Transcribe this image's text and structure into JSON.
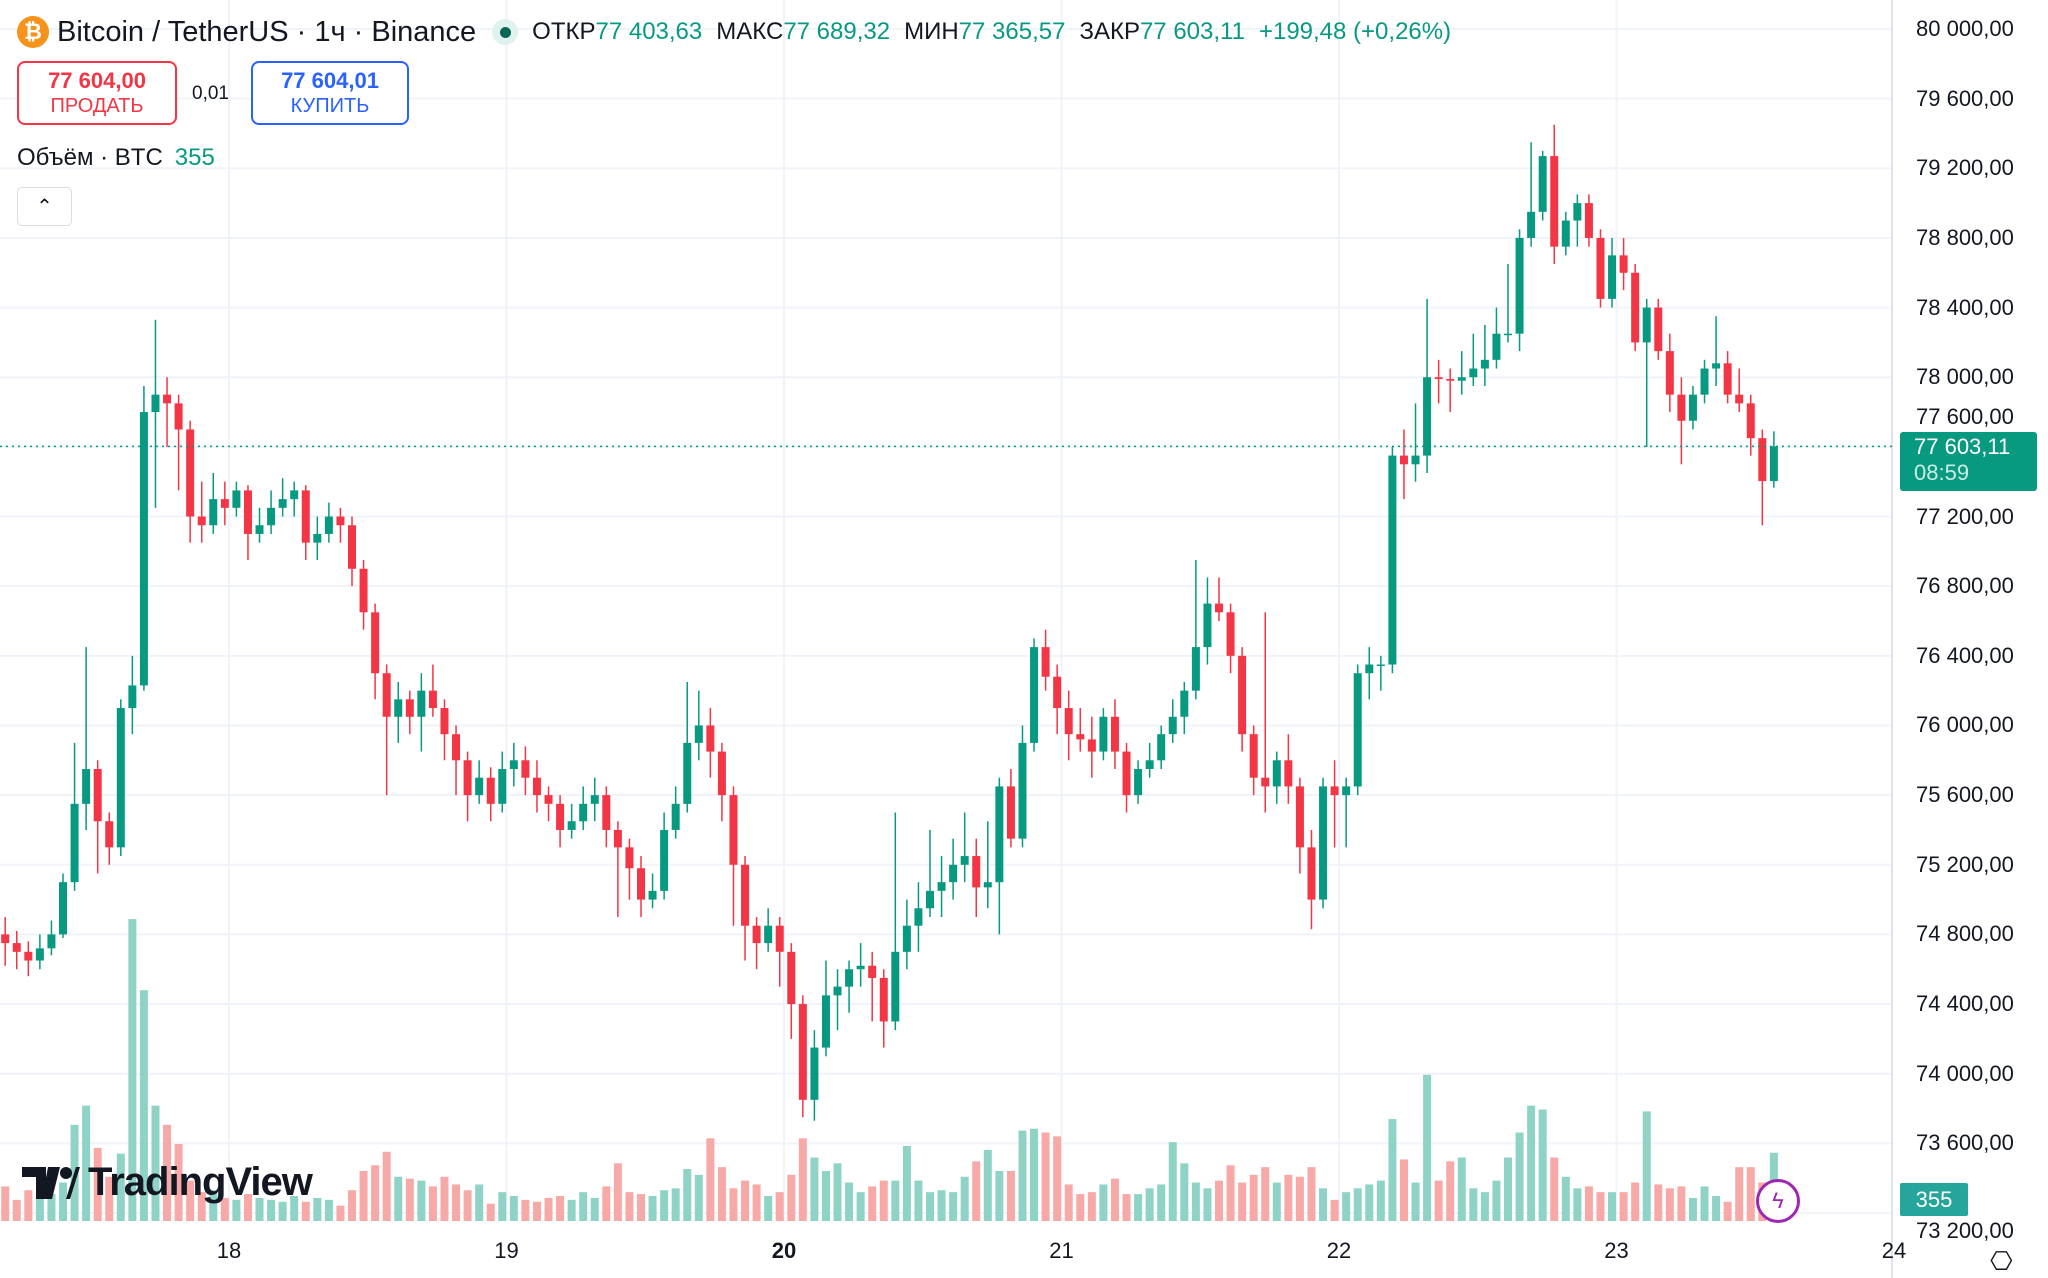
{
  "header": {
    "coin_icon": "bitcoin-icon",
    "title": "Bitcoin / TetherUS · 1ч · Binance",
    "ohlc": [
      {
        "label": "ОТКР",
        "value": "77 403,63"
      },
      {
        "label": "МАКС",
        "value": "77 689,32"
      },
      {
        "label": "МИН",
        "value": "77 365,57"
      },
      {
        "label": "ЗАКР",
        "value": "77 603,11"
      }
    ],
    "change": "+199,48 (+0,26%)"
  },
  "trade": {
    "sell_price": "77 604,00",
    "sell_label": "ПРОДАТЬ",
    "spread": "0,01",
    "buy_price": "77 604,01",
    "buy_label": "КУПИТЬ"
  },
  "volume_legend": {
    "label": "Объём · BTC",
    "value": "355"
  },
  "price_axis": [
    "80 000,00",
    "79 600,00",
    "79 200,00",
    "78 800,00",
    "78 400,00",
    "78 000,00",
    "77 600,00",
    "77 200,00",
    "76 800,00",
    "76 400,00",
    "76 000,00",
    "75 600,00",
    "75 200,00",
    "74 800,00",
    "74 400,00",
    "74 000,00",
    "73 600,00",
    "73 200,00"
  ],
  "last_price": {
    "value": "77 603,11",
    "countdown": "08:59"
  },
  "last_volume": "355",
  "brand": "TradingView",
  "colors": {
    "up": "#089981",
    "down": "#f23645",
    "vol_up": "#8fd3c7",
    "vol_down": "#f7a9a7"
  },
  "chart_data": {
    "type": "candlestick",
    "interval": "1h",
    "x_tick_labels": [
      "18",
      "19",
      "20",
      "21",
      "22",
      "23",
      "24"
    ],
    "ylim": [
      73200,
      80000
    ],
    "grid": true,
    "candles_ohlcv": [
      [
        74800,
        74900,
        74620,
        74750,
        180
      ],
      [
        74750,
        74820,
        74600,
        74700,
        110
      ],
      [
        74700,
        74760,
        74560,
        74650,
        160
      ],
      [
        74650,
        74800,
        74600,
        74720,
        120
      ],
      [
        74720,
        74880,
        74680,
        74800,
        140
      ],
      [
        74800,
        75150,
        74780,
        75100,
        200
      ],
      [
        75100,
        75900,
        75050,
        75550,
        500
      ],
      [
        75550,
        76450,
        75400,
        75750,
        600
      ],
      [
        75750,
        75800,
        75150,
        75450,
        380
      ],
      [
        75450,
        75500,
        75200,
        75300,
        230
      ],
      [
        75300,
        76150,
        75250,
        76100,
        350
      ],
      [
        76100,
        76400,
        75950,
        76230,
        1570
      ],
      [
        76230,
        77950,
        76200,
        77800,
        1200
      ],
      [
        77800,
        78330,
        77250,
        77900,
        600
      ],
      [
        77900,
        78000,
        77600,
        77850,
        500
      ],
      [
        77850,
        77900,
        77350,
        77700,
        400
      ],
      [
        77700,
        77750,
        77050,
        77200,
        210
      ],
      [
        77200,
        77400,
        77050,
        77150,
        150
      ],
      [
        77150,
        77450,
        77100,
        77300,
        160
      ],
      [
        77300,
        77400,
        77150,
        77250,
        120
      ],
      [
        77250,
        77400,
        77200,
        77350,
        110
      ],
      [
        77350,
        77380,
        76950,
        77100,
        140
      ],
      [
        77100,
        77250,
        77050,
        77150,
        120
      ],
      [
        77150,
        77350,
        77100,
        77250,
        110
      ],
      [
        77250,
        77420,
        77200,
        77300,
        100
      ],
      [
        77300,
        77400,
        77200,
        77350,
        130
      ],
      [
        77350,
        77380,
        76950,
        77050,
        100
      ],
      [
        77050,
        77200,
        76950,
        77100,
        120
      ],
      [
        77100,
        77280,
        77050,
        77200,
        110
      ],
      [
        77200,
        77250,
        77050,
        77150,
        80
      ],
      [
        77150,
        77200,
        76800,
        76900,
        160
      ],
      [
        76900,
        76950,
        76550,
        76650,
        260
      ],
      [
        76650,
        76700,
        76150,
        76300,
        290
      ],
      [
        76300,
        76350,
        75600,
        76050,
        360
      ],
      [
        76050,
        76250,
        75900,
        76150,
        230
      ],
      [
        76150,
        76200,
        75950,
        76050,
        220
      ],
      [
        76050,
        76300,
        75850,
        76200,
        210
      ],
      [
        76200,
        76350,
        76050,
        76100,
        180
      ],
      [
        76100,
        76150,
        75800,
        75950,
        230
      ],
      [
        75950,
        76000,
        75600,
        75800,
        190
      ],
      [
        75800,
        75850,
        75450,
        75600,
        160
      ],
      [
        75600,
        75800,
        75550,
        75700,
        190
      ],
      [
        75700,
        75760,
        75450,
        75550,
        90
      ],
      [
        75550,
        75850,
        75500,
        75750,
        150
      ],
      [
        75750,
        75900,
        75650,
        75800,
        130
      ],
      [
        75800,
        75880,
        75600,
        75700,
        110
      ],
      [
        75700,
        75800,
        75500,
        75600,
        100
      ],
      [
        75600,
        75650,
        75450,
        75550,
        120
      ],
      [
        75550,
        75600,
        75300,
        75400,
        130
      ],
      [
        75400,
        75550,
        75350,
        75450,
        110
      ],
      [
        75450,
        75650,
        75400,
        75550,
        150
      ],
      [
        75550,
        75700,
        75450,
        75600,
        120
      ],
      [
        75600,
        75650,
        75300,
        75400,
        180
      ],
      [
        75400,
        75450,
        74900,
        75300,
        300
      ],
      [
        75300,
        75350,
        75000,
        75180,
        150
      ],
      [
        75180,
        75250,
        74900,
        75000,
        140
      ],
      [
        75000,
        75150,
        74950,
        75050,
        130
      ],
      [
        75050,
        75500,
        75000,
        75400,
        160
      ],
      [
        75400,
        75650,
        75350,
        75550,
        170
      ],
      [
        75550,
        76250,
        75500,
        75900,
        270
      ],
      [
        75900,
        76200,
        75800,
        76000,
        240
      ],
      [
        76000,
        76100,
        75700,
        75850,
        430
      ],
      [
        75850,
        75900,
        75450,
        75600,
        280
      ],
      [
        75600,
        75650,
        74850,
        75200,
        170
      ],
      [
        75200,
        75250,
        74650,
        74850,
        210
      ],
      [
        74850,
        74900,
        74600,
        74750,
        190
      ],
      [
        74750,
        74950,
        74700,
        74850,
        130
      ],
      [
        74850,
        74900,
        74500,
        74700,
        150
      ],
      [
        74700,
        74750,
        74200,
        74400,
        240
      ],
      [
        74400,
        74450,
        73750,
        73850,
        430
      ],
      [
        73850,
        74250,
        73730,
        74150,
        330
      ],
      [
        74150,
        74650,
        74100,
        74450,
        260
      ],
      [
        74450,
        74600,
        74250,
        74500,
        300
      ],
      [
        74500,
        74650,
        74350,
        74600,
        200
      ],
      [
        74600,
        74750,
        74500,
        74620,
        150
      ],
      [
        74620,
        74700,
        74300,
        74550,
        180
      ],
      [
        74550,
        74600,
        74150,
        74300,
        210
      ],
      [
        74300,
        75500,
        74250,
        74700,
        210
      ],
      [
        74700,
        75000,
        74600,
        74850,
        390
      ],
      [
        74850,
        75100,
        74700,
        74950,
        210
      ],
      [
        74950,
        75400,
        74900,
        75050,
        150
      ],
      [
        75050,
        75250,
        74900,
        75100,
        160
      ],
      [
        75100,
        75350,
        75000,
        75200,
        150
      ],
      [
        75200,
        75500,
        75100,
        75250,
        230
      ],
      [
        75250,
        75350,
        74900,
        75070,
        310
      ],
      [
        75070,
        75450,
        74950,
        75100,
        370
      ],
      [
        75100,
        75700,
        74800,
        75650,
        260
      ],
      [
        75650,
        75750,
        75300,
        75350,
        260
      ],
      [
        75350,
        76000,
        75300,
        75900,
        470
      ],
      [
        75900,
        76500,
        75850,
        76450,
        480
      ],
      [
        76450,
        76550,
        76200,
        76280,
        460
      ],
      [
        76280,
        76350,
        75950,
        76100,
        440
      ],
      [
        76100,
        76200,
        75800,
        75950,
        190
      ],
      [
        75950,
        76100,
        75850,
        75920,
        140
      ],
      [
        75920,
        76050,
        75700,
        75850,
        150
      ],
      [
        75850,
        76100,
        75800,
        76050,
        190
      ],
      [
        76050,
        76150,
        75750,
        75850,
        220
      ],
      [
        75850,
        75900,
        75500,
        75600,
        140
      ],
      [
        75600,
        75800,
        75550,
        75750,
        140
      ],
      [
        75750,
        75900,
        75700,
        75800,
        170
      ],
      [
        75800,
        76000,
        75750,
        75950,
        190
      ],
      [
        75950,
        76150,
        75900,
        76050,
        410
      ],
      [
        76050,
        76250,
        75950,
        76200,
        300
      ],
      [
        76200,
        76950,
        76150,
        76450,
        200
      ],
      [
        76450,
        76850,
        76350,
        76700,
        170
      ],
      [
        76700,
        76850,
        76600,
        76650,
        210
      ],
      [
        76650,
        76700,
        76300,
        76400,
        290
      ],
      [
        76400,
        76450,
        75850,
        75950,
        200
      ],
      [
        75950,
        76000,
        75600,
        75700,
        240
      ],
      [
        75700,
        76650,
        75500,
        75650,
        280
      ],
      [
        75650,
        75850,
        75550,
        75800,
        200
      ],
      [
        75800,
        75950,
        75550,
        75650,
        240
      ],
      [
        75650,
        75700,
        75150,
        75300,
        230
      ],
      [
        75300,
        75400,
        74830,
        75000,
        280
      ],
      [
        75000,
        75700,
        74950,
        75650,
        170
      ],
      [
        75650,
        75800,
        75300,
        75600,
        110
      ],
      [
        75600,
        75700,
        75300,
        75650,
        150
      ],
      [
        75650,
        76350,
        75600,
        76300,
        170
      ],
      [
        76300,
        76450,
        76150,
        76350,
        190
      ],
      [
        76350,
        76400,
        76200,
        76350,
        210
      ],
      [
        76350,
        77600,
        76300,
        77550,
        530
      ],
      [
        77550,
        77700,
        77300,
        77500,
        320
      ],
      [
        77500,
        77850,
        77400,
        77550,
        200
      ],
      [
        77550,
        78450,
        77450,
        78000,
        760
      ],
      [
        78000,
        78100,
        77850,
        77990,
        210
      ],
      [
        77990,
        78050,
        77800,
        77980,
        310
      ],
      [
        77980,
        78150,
        77900,
        78000,
        330
      ],
      [
        78000,
        78250,
        77950,
        78050,
        170
      ],
      [
        78050,
        78300,
        77950,
        78100,
        150
      ],
      [
        78100,
        78400,
        78050,
        78250,
        210
      ],
      [
        78250,
        78650,
        78200,
        78250,
        330
      ],
      [
        78250,
        78850,
        78150,
        78800,
        460
      ],
      [
        78800,
        79350,
        78750,
        78950,
        600
      ],
      [
        78950,
        79300,
        78900,
        79270,
        580
      ],
      [
        79270,
        79450,
        78650,
        78750,
        330
      ],
      [
        78750,
        78950,
        78700,
        78900,
        230
      ],
      [
        78900,
        79050,
        78750,
        79000,
        170
      ],
      [
        79000,
        79050,
        78750,
        78800,
        180
      ],
      [
        78800,
        78850,
        78400,
        78450,
        150
      ],
      [
        78450,
        78800,
        78400,
        78700,
        150
      ],
      [
        78700,
        78800,
        78500,
        78600,
        150
      ],
      [
        78600,
        78650,
        78150,
        78200,
        200
      ],
      [
        78200,
        78450,
        77600,
        78400,
        570
      ],
      [
        78400,
        78450,
        78100,
        78150,
        190
      ],
      [
        78150,
        78250,
        77800,
        77900,
        170
      ],
      [
        77900,
        78000,
        77500,
        77750,
        180
      ],
      [
        77750,
        77950,
        77700,
        77900,
        120
      ],
      [
        77900,
        78100,
        77850,
        78050,
        180
      ],
      [
        78050,
        78350,
        77950,
        78080,
        130
      ],
      [
        78080,
        78150,
        77850,
        77900,
        100
      ],
      [
        77900,
        78050,
        77800,
        77850,
        280
      ],
      [
        77850,
        77900,
        77550,
        77650,
        280
      ],
      [
        77650,
        77700,
        77150,
        77403.63,
        200
      ],
      [
        77403.63,
        77689.32,
        77365.57,
        77603.11,
        355
      ]
    ]
  }
}
